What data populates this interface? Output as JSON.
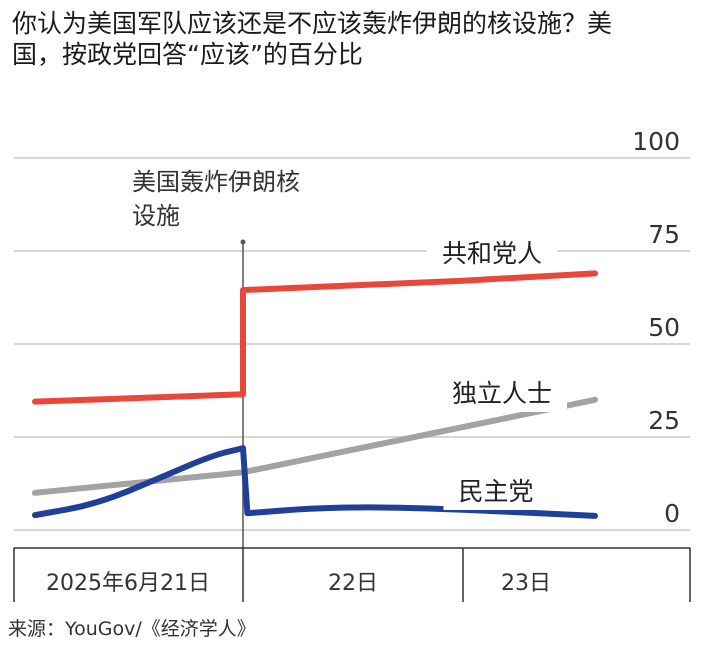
{
  "title": "你认为美国军队应该还是不应该轰炸伊朗的核设施？美国，按政党回答“应该”的百分比",
  "source": "来源：YouGov/《经济学人》",
  "chart_data": {
    "type": "line",
    "ylim": [
      0,
      100
    ],
    "yticks": [
      "100",
      "75",
      "50",
      "25",
      "0"
    ],
    "ytick_values": [
      100,
      75,
      50,
      25,
      0
    ],
    "x_tick_labels": [
      "2025年6月21日",
      "22日",
      "23日"
    ],
    "event_label": "美国轰炸伊朗核设施",
    "grid": true,
    "colors": {
      "republican": "#e8473a",
      "independent": "#a3a3a3",
      "democrat": "#1f3f99",
      "grid": "#cccccc",
      "axis": "#333333"
    },
    "series": [
      {
        "name": "共和党人",
        "key": "republican",
        "x": [
          0,
          1.0,
          1.0,
          2.0,
          2.6
        ],
        "values": [
          34.5,
          36.5,
          64.5,
          67,
          69
        ]
      },
      {
        "name": "独立人士",
        "key": "independent",
        "x": [
          0,
          1.0,
          2.6
        ],
        "values": [
          10,
          15.5,
          35
        ]
      },
      {
        "name": "民主党",
        "key": "democrat",
        "x": [
          0,
          0.3,
          0.6,
          0.85,
          1.0,
          1.02,
          1.3,
          1.6,
          2.0,
          2.6
        ],
        "values": [
          4,
          7,
          14,
          20,
          22,
          4.5,
          5.8,
          6.2,
          5.5,
          3.8
        ]
      }
    ]
  }
}
